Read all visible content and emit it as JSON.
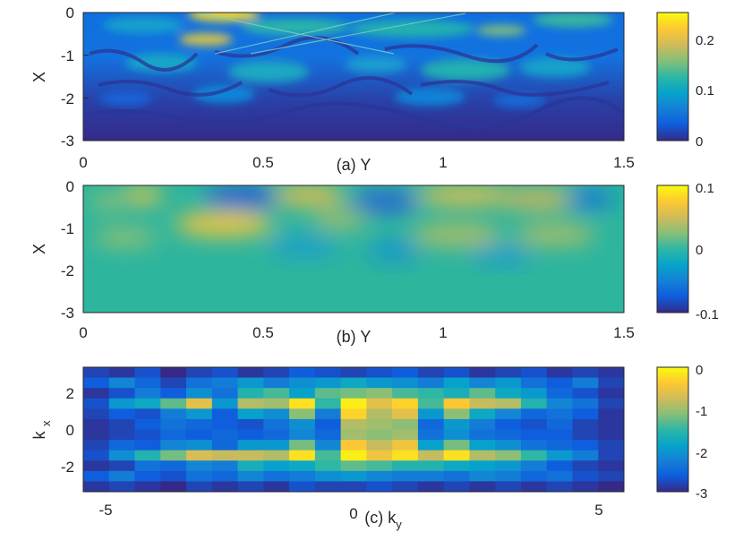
{
  "chart_data": [
    {
      "id": "a",
      "type": "heatmap",
      "xlabel": "(a) Y",
      "ylabel": "X",
      "xlim": [
        0,
        1.5
      ],
      "ylim": [
        -3,
        0
      ],
      "xticks": [
        "0",
        "0.5",
        "1",
        "1.5"
      ],
      "yticks": [
        "0",
        "-1",
        "-2",
        "-3"
      ],
      "colorbar": {
        "range": [
          0,
          0.25
        ],
        "ticks": [
          "0.2",
          "0.1",
          "0"
        ]
      },
      "description": "Field magnitude over the X–Y domain; strongest (yellow) near X≈0 and X≈-0.5, decaying toward X=-3."
    },
    {
      "id": "b",
      "type": "heatmap",
      "xlabel": "(b) Y",
      "ylabel": "X",
      "xlim": [
        0,
        1.5
      ],
      "ylim": [
        -3,
        0
      ],
      "xticks": [
        "0",
        "0.5",
        "1",
        "1.5"
      ],
      "yticks": [
        "0",
        "-1",
        "-2",
        "-3"
      ],
      "colorbar": {
        "range": [
          -0.1,
          0.1
        ],
        "ticks": [
          "0.1",
          "0",
          "-0.1"
        ]
      },
      "description": "Signed field; positive lobes near Y≈0.35 (X≈-0.9), Y≈0.65, Y≈1.1 (X≈-0.2); negative lobes near Y≈0.3 (X≈-0.2) and Y≈0.85."
    },
    {
      "id": "c",
      "type": "heatmap",
      "xlabel": "(c) k",
      "xlabel_sub": "y",
      "ylabel": "k",
      "ylabel_sub": "x",
      "xlim": [
        -5.6,
        5.6
      ],
      "ylim": [
        -3.5,
        3.5
      ],
      "xticks": [
        "-5",
        "0",
        "5"
      ],
      "yticks": [
        "2",
        "0",
        "-2"
      ],
      "colorbar": {
        "range": [
          -3,
          0
        ],
        "ticks": [
          "0",
          "-1",
          "-2",
          "-3"
        ]
      },
      "grid_cols": 21,
      "grid_rows": 12,
      "values": [
        [
          -2.8,
          -2.9,
          -2.7,
          -3.0,
          -2.8,
          -2.7,
          -2.9,
          -2.8,
          -2.6,
          -2.7,
          -2.8,
          -2.7,
          -2.6,
          -2.8,
          -2.7,
          -2.9,
          -2.8,
          -2.7,
          -2.9,
          -2.8,
          -2.9
        ],
        [
          -2.6,
          -2.2,
          -2.5,
          -2.8,
          -2.4,
          -2.3,
          -2.0,
          -2.3,
          -2.1,
          -2.0,
          -1.8,
          -2.0,
          -2.1,
          -2.3,
          -1.9,
          -2.2,
          -2.0,
          -2.4,
          -2.6,
          -2.3,
          -2.8
        ],
        [
          -2.9,
          -2.7,
          -2.3,
          -2.6,
          -2.1,
          -2.4,
          -1.6,
          -1.4,
          -1.9,
          -1.3,
          -1.2,
          -1.1,
          -1.4,
          -1.5,
          -1.7,
          -1.3,
          -1.8,
          -2.0,
          -2.5,
          -2.7,
          -2.9
        ],
        [
          -2.7,
          -2.0,
          -1.8,
          -1.3,
          -0.6,
          -2.0,
          -0.9,
          -1.0,
          -0.2,
          -1.5,
          -0.1,
          -0.6,
          -0.3,
          -1.4,
          -0.4,
          -0.8,
          -0.9,
          -1.6,
          -2.2,
          -2.4,
          -2.8
        ],
        [
          -2.8,
          -2.6,
          -2.7,
          -2.3,
          -2.0,
          -2.6,
          -1.9,
          -2.1,
          -1.1,
          -2.3,
          -0.3,
          -0.9,
          -0.6,
          -2.0,
          -1.1,
          -1.8,
          -2.2,
          -2.5,
          -2.4,
          -2.6,
          -2.9
        ],
        [
          -2.9,
          -2.8,
          -2.6,
          -2.4,
          -2.5,
          -2.6,
          -2.7,
          -2.4,
          -2.1,
          -2.6,
          -0.9,
          -1.0,
          -1.1,
          -2.5,
          -2.0,
          -2.3,
          -2.6,
          -2.7,
          -2.5,
          -2.8,
          -2.9
        ],
        [
          -2.9,
          -2.8,
          -2.7,
          -2.5,
          -2.6,
          -2.5,
          -2.6,
          -2.5,
          -2.2,
          -2.5,
          -1.0,
          -1.1,
          -1.0,
          -2.4,
          -2.1,
          -2.4,
          -2.5,
          -2.6,
          -2.6,
          -2.8,
          -2.9
        ],
        [
          -2.8,
          -2.5,
          -2.6,
          -2.2,
          -2.1,
          -2.5,
          -2.0,
          -2.0,
          -1.2,
          -2.2,
          -0.4,
          -0.8,
          -0.5,
          -1.9,
          -1.2,
          -1.9,
          -2.1,
          -2.4,
          -2.5,
          -2.6,
          -2.8
        ],
        [
          -2.7,
          -2.1,
          -1.6,
          -1.2,
          -0.7,
          -0.8,
          -0.8,
          -0.9,
          -0.2,
          -1.4,
          -0.1,
          -0.5,
          -0.2,
          -0.8,
          -0.2,
          -0.9,
          -1.1,
          -1.5,
          -2.0,
          -2.3,
          -2.8
        ],
        [
          -2.9,
          -2.8,
          -2.4,
          -2.5,
          -2.2,
          -2.3,
          -1.7,
          -1.9,
          -1.8,
          -1.5,
          -1.3,
          -1.4,
          -1.6,
          -1.6,
          -1.8,
          -1.9,
          -2.0,
          -2.3,
          -2.6,
          -2.8,
          -2.9
        ],
        [
          -2.6,
          -2.3,
          -2.6,
          -2.7,
          -2.4,
          -2.5,
          -2.2,
          -2.4,
          -2.3,
          -2.1,
          -2.0,
          -2.2,
          -2.3,
          -2.3,
          -2.4,
          -2.2,
          -2.3,
          -2.5,
          -2.4,
          -2.7,
          -2.8
        ],
        [
          -2.9,
          -2.8,
          -2.9,
          -3.0,
          -2.8,
          -2.9,
          -2.8,
          -2.9,
          -2.7,
          -2.8,
          -2.8,
          -2.7,
          -2.8,
          -2.9,
          -2.8,
          -2.9,
          -2.8,
          -2.9,
          -2.8,
          -2.9,
          -3.0
        ]
      ]
    }
  ],
  "colors": {
    "parula": [
      "#352a87",
      "#0f5cdd",
      "#1481d6",
      "#06a4ca",
      "#2eb7a4",
      "#87bf77",
      "#d1bb59",
      "#fec832",
      "#f9fb0e"
    ],
    "axis": "#262626",
    "background": "#ffffff"
  }
}
